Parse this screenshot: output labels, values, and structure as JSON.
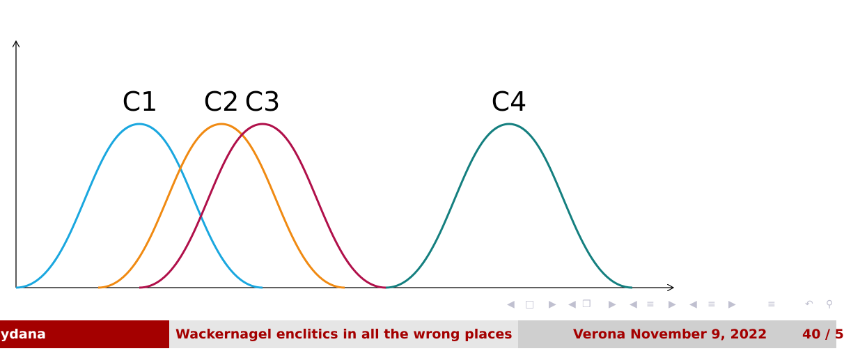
{
  "diagram": {
    "curves": [
      {
        "label": "C1",
        "color": "#1aa7df"
      },
      {
        "label": "C2",
        "color": "#f08a12"
      },
      {
        "label": "C3",
        "color": "#b0104a"
      },
      {
        "label": "C4",
        "color": "#147f7f"
      }
    ]
  },
  "nav": {
    "icons": [
      "prev-frame-icon",
      "frame-icon",
      "next-frame-icon",
      "prev-subsection-icon",
      "subsection-icon",
      "next-subsection-icon",
      "prev-section-icon",
      "section-icon",
      "next-section-icon",
      "prev-item-icon",
      "item-icon",
      "next-item-icon",
      "align-icon",
      "undo-icon",
      "search-icon"
    ]
  },
  "footer": {
    "author": "ydana",
    "title": "Wackernagel enclitics in all the wrong places",
    "date": "Verona November 9, 2022",
    "page": "40 / 5"
  }
}
